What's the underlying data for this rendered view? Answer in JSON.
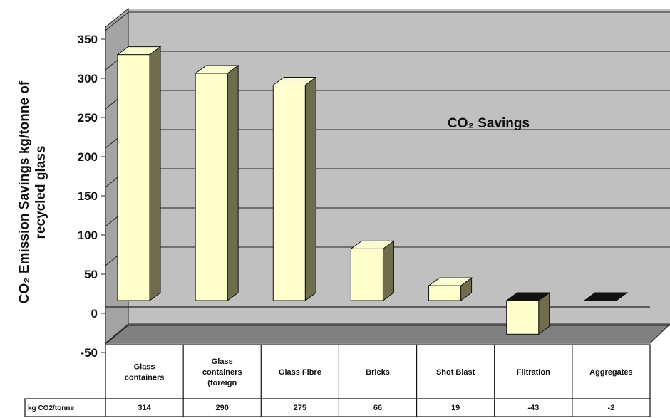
{
  "chart_data": {
    "type": "bar",
    "title": "CO₂ Savings",
    "ylabel_line1": "CO₂ Emission Savings kg/tonne of",
    "ylabel_line2": "recycled glass",
    "ylim": [
      -50,
      350
    ],
    "yticks": [
      -50,
      0,
      50,
      100,
      150,
      200,
      250,
      300,
      350
    ],
    "grid": true,
    "categories": [
      [
        "Glass",
        "containers"
      ],
      [
        "Glass",
        "containers",
        "(foreign"
      ],
      [
        "Glass Fibre"
      ],
      [
        "Bricks"
      ],
      [
        "Shot Blast"
      ],
      [
        "Filtration"
      ],
      [
        "Aggregates"
      ]
    ],
    "values": [
      314,
      290,
      275,
      66,
      19,
      -43,
      -2
    ],
    "value_labels": [
      "314",
      "290",
      "275",
      "66",
      "19",
      "-43",
      "-2"
    ],
    "table_row_label": "kg CO2/tonne",
    "colors": {
      "bar_front": "#ffffcc",
      "bar_side": "#6e6e4e",
      "bar_top": "#fbfbd2",
      "wall": "#c0c0c0",
      "floor": "#808080"
    }
  }
}
